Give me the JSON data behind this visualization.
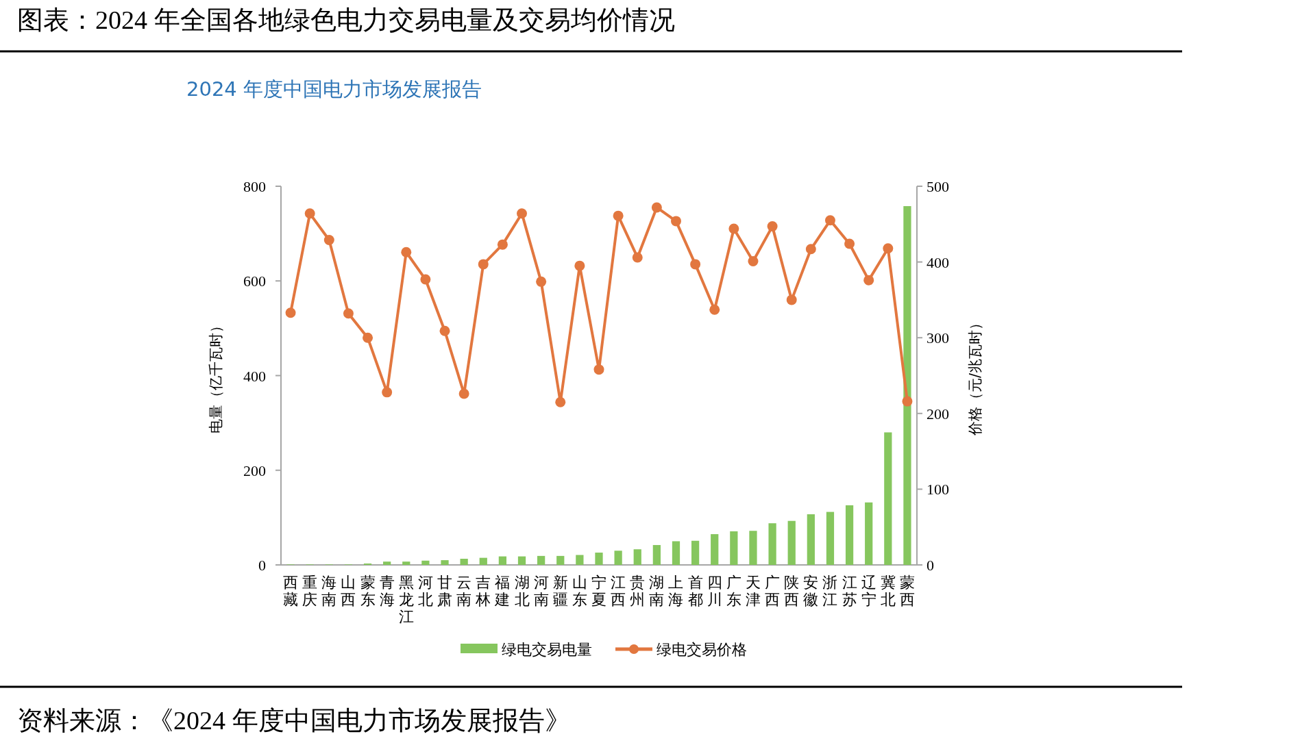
{
  "chart_data": {
    "type": "bar",
    "title": "图表：2024 年全国各地绿色电力交易电量及交易均价情况",
    "subtitle": "2024 年度中国电力市场发展报告",
    "categories": [
      "西藏",
      "重庆",
      "海南",
      "山西",
      "蒙东",
      "青海",
      "黑龙江",
      "河北",
      "甘肃",
      "云南",
      "吉林",
      "福建",
      "湖北",
      "河南",
      "新疆",
      "山东",
      "宁夏",
      "江西",
      "贵州",
      "湖南",
      "上海",
      "首都",
      "四川",
      "广东",
      "天津",
      "广西",
      "陕西",
      "安徽",
      "浙江",
      "江苏",
      "辽宁",
      "冀北",
      "蒙西"
    ],
    "series": [
      {
        "name": "绿电交易电量",
        "color": "#86c65e",
        "values": [
          1,
          1,
          1,
          1,
          3,
          7,
          7,
          9,
          10,
          13,
          15,
          18,
          18,
          19,
          19,
          21,
          26,
          30,
          33,
          42,
          50,
          51,
          65,
          71,
          72,
          88,
          93,
          107,
          112,
          126,
          132,
          280,
          758
        ]
      },
      {
        "name": "绿电交易价格",
        "type": "line",
        "axis": "y2",
        "color": "#e2773f",
        "marker": "circle",
        "values": [
          333,
          464,
          429,
          332,
          300,
          228,
          413,
          377,
          309,
          226,
          397,
          423,
          464,
          374,
          215,
          395,
          258,
          461,
          406,
          472,
          454,
          397,
          337,
          444,
          401,
          447,
          350,
          417,
          455,
          424,
          376,
          418,
          216
        ]
      }
    ],
    "ylabel": "电量（亿千瓦时）",
    "y2label": "价格（元/兆瓦时）",
    "ylim": [
      0,
      800
    ],
    "yticks": [
      0,
      200,
      400,
      600,
      800
    ],
    "y2lim": [
      0,
      500
    ],
    "y2ticks": [
      0,
      100,
      200,
      300,
      400,
      500
    ],
    "legend": "bottom",
    "annotations": [
      "资料来源：《2024 年度中国电力市场发展报告》"
    ]
  }
}
